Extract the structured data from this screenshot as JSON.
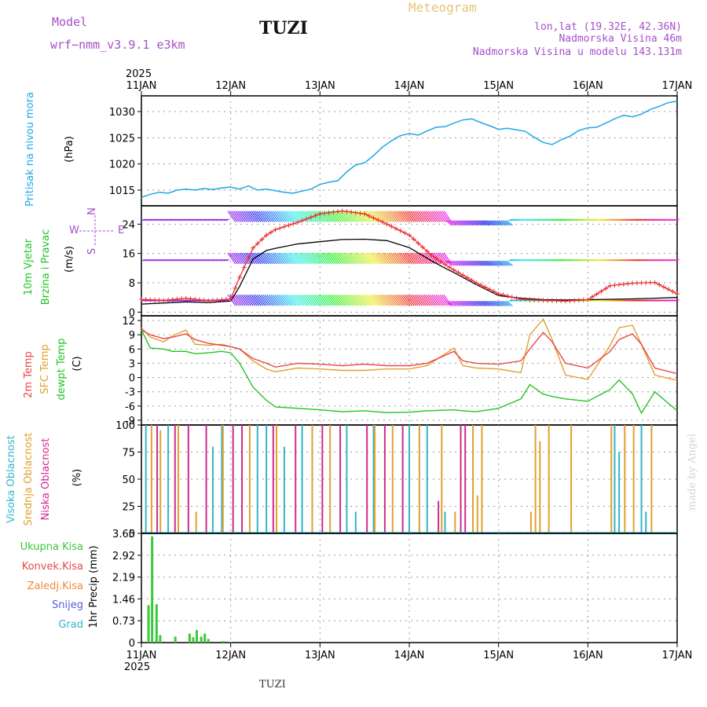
{
  "header": {
    "model_label": "Model",
    "model_name": "wrf−nmm_v3.9.1  e3km",
    "station": "TUZI",
    "product": "Meteogram",
    "coords": "lon,lat (19.32E, 42.36N)",
    "altitude": "Nadmorska Visina 46m",
    "model_altitude": "Nadmorska Visina u modelu 143.131m",
    "year_top": "2025",
    "year_bottom": "2025",
    "footer_station": "TUZI",
    "credit": "made by Angel"
  },
  "colors": {
    "pressure": "#1ea7e6",
    "temp2m": "#e84848",
    "sfc": "#e0a030",
    "dew": "#22c422",
    "gust": "#e83030",
    "speed": "#000000",
    "cloud_high": "#33b5c8",
    "cloud_mid": "#e0a030",
    "cloud_low": "#d02a8e",
    "precip": "#3cc83c",
    "model_text": "#a64fc9",
    "meteogram_text": "#e9c37a"
  },
  "chart_data": [
    {
      "type": "line",
      "panel": "pressure",
      "ylabel_rotated": "Pritisak na nivou mora",
      "unit": "(hPa)",
      "ylim": [
        1012,
        1033
      ],
      "yticks": [
        1015,
        1020,
        1025,
        1030
      ],
      "x_days": [
        0,
        0.1,
        0.2,
        0.3,
        0.4,
        0.5,
        0.6,
        0.7,
        0.8,
        0.9,
        1.0,
        1.1,
        1.2,
        1.3,
        1.4,
        1.5,
        1.6,
        1.7,
        1.8,
        1.9,
        2.0,
        2.1,
        2.2,
        2.3,
        2.4,
        2.5,
        2.6,
        2.7,
        2.8,
        2.9,
        3.0,
        3.1,
        3.2,
        3.3,
        3.4,
        3.5,
        3.6,
        3.7,
        3.8,
        3.9,
        4.0,
        4.1,
        4.2,
        4.3,
        4.4,
        4.5,
        4.6,
        4.7,
        4.8,
        4.9,
        5.0,
        5.1,
        5.2,
        5.3,
        5.4,
        5.5,
        5.6,
        5.7,
        5.8,
        5.9,
        6.0
      ],
      "values": [
        1013.6,
        1014.2,
        1014.6,
        1014.4,
        1015.0,
        1015.2,
        1015.0,
        1015.3,
        1015.1,
        1015.4,
        1015.6,
        1015.2,
        1015.8,
        1015.0,
        1015.2,
        1014.9,
        1014.6,
        1014.4,
        1014.8,
        1015.2,
        1016.1,
        1016.5,
        1016.8,
        1018.5,
        1019.8,
        1020.2,
        1021.6,
        1023.2,
        1024.4,
        1025.4,
        1025.8,
        1025.5,
        1026.3,
        1027.0,
        1027.1,
        1027.8,
        1028.4,
        1028.6,
        1027.9,
        1027.3,
        1026.6,
        1026.8,
        1026.5,
        1026.2,
        1025.1,
        1024.1,
        1023.7,
        1024.6,
        1025.3,
        1026.4,
        1026.9,
        1027.0,
        1027.8,
        1028.6,
        1029.3,
        1029.0,
        1029.5,
        1030.4,
        1031.0,
        1031.7,
        1032.0
      ],
      "series": [
        {
          "name": "Pritisak na nivou mora"
        }
      ]
    },
    {
      "type": "line",
      "panel": "wind",
      "ylabel_rotated_1": "10m Vjetar",
      "ylabel_rotated_2": "Brzina i Pravac",
      "unit": "(m/s)",
      "compass": "N",
      "compass_w": "W",
      "compass_e": "E",
      "compass_s": "S",
      "ylim": [
        -1,
        29
      ],
      "yticks": [
        0,
        8,
        16,
        24
      ],
      "x_days": [
        0,
        0.25,
        0.5,
        0.75,
        1.0,
        1.1,
        1.25,
        1.4,
        1.5,
        1.75,
        2.0,
        2.25,
        2.5,
        2.75,
        3.0,
        3.25,
        3.4,
        3.5,
        3.75,
        4.0,
        4.25,
        4.5,
        4.75,
        5.0,
        5.25,
        5.5,
        5.75,
        6.0
      ],
      "series": [
        {
          "name": "Brzina (mean)",
          "values": [
            2.2,
            2.5,
            2.8,
            2.6,
            3.0,
            7.0,
            14.5,
            16.8,
            17.4,
            18.6,
            19.2,
            19.8,
            19.9,
            19.5,
            17.6,
            14.0,
            12.0,
            10.8,
            7.5,
            4.5,
            3.8,
            3.4,
            3.3,
            3.4,
            3.5,
            3.6,
            3.8,
            4.0
          ]
        },
        {
          "name": "Udar vjetra",
          "values": [
            3.5,
            3.2,
            3.8,
            3.1,
            3.6,
            9.5,
            17.5,
            21.0,
            22.5,
            24.5,
            26.8,
            27.6,
            26.8,
            24.0,
            21.0,
            15.5,
            13.0,
            11.5,
            8.0,
            5.0,
            3.5,
            3.2,
            3.0,
            3.4,
            7.2,
            7.9,
            8.1,
            5.0
          ]
        }
      ],
      "barb_rows": [
        25,
        14,
        3
      ]
    },
    {
      "type": "line",
      "panel": "temperature",
      "ylabel_rotated_1": "2m Temp",
      "ylabel_rotated_2": "SFC Temp",
      "ylabel_rotated_3": "dewpt Temp",
      "unit": "(C)",
      "ylim": [
        -10,
        13
      ],
      "yticks": [
        -9,
        -6,
        -3,
        0,
        3,
        6,
        9,
        12
      ],
      "x_days": [
        0,
        0.1,
        0.25,
        0.35,
        0.5,
        0.6,
        0.75,
        0.9,
        1.0,
        1.1,
        1.25,
        1.4,
        1.5,
        1.75,
        2.0,
        2.25,
        2.5,
        2.75,
        3.0,
        3.2,
        3.5,
        3.6,
        3.75,
        4.0,
        4.25,
        4.35,
        4.5,
        4.6,
        4.75,
        5.0,
        5.25,
        5.35,
        5.5,
        5.6,
        5.75,
        6.0
      ],
      "series": [
        {
          "name": "2m Temp",
          "values": [
            10,
            9,
            8.2,
            8.5,
            9.2,
            8.0,
            7.2,
            6.8,
            6.5,
            6.0,
            4.0,
            3.0,
            2.2,
            3.0,
            2.8,
            2.5,
            2.8,
            2.5,
            2.5,
            3.0,
            5.5,
            3.5,
            3.0,
            2.8,
            3.5,
            6.0,
            9.5,
            7.5,
            3.0,
            2.0,
            5.5,
            8.0,
            9.2,
            7.0,
            2.0,
            0.8
          ]
        },
        {
          "name": "SFC Temp",
          "values": [
            10.5,
            8.5,
            7.5,
            8.8,
            10.0,
            7.0,
            6.8,
            7.0,
            6.5,
            6.0,
            3.5,
            1.8,
            1.2,
            2.0,
            1.8,
            1.5,
            1.5,
            1.8,
            1.8,
            2.5,
            6.2,
            2.5,
            2.0,
            1.8,
            1.0,
            9.0,
            12.3,
            8.0,
            0.5,
            -0.4,
            6.8,
            10.5,
            11.0,
            7.0,
            0.5,
            -0.6
          ]
        },
        {
          "name": "dewpt Temp",
          "values": [
            10,
            6.2,
            6.0,
            5.5,
            5.5,
            5.0,
            5.2,
            5.5,
            5.2,
            3.0,
            -2.0,
            -4.8,
            -6.2,
            -6.5,
            -6.8,
            -7.2,
            -7.0,
            -7.4,
            -7.3,
            -7.0,
            -6.8,
            -7.0,
            -7.2,
            -6.5,
            -4.5,
            -1.5,
            -3.5,
            -4.0,
            -4.5,
            -5.0,
            -2.5,
            -0.5,
            -3.5,
            -7.5,
            -3.0,
            -7.0
          ]
        }
      ]
    },
    {
      "type": "bar",
      "panel": "clouds",
      "ylabel_rotated_1": "Visoka Oblacnost",
      "ylabel_rotated_2": "Srednja Oblacnost",
      "ylabel_rotated_3": "Niska Oblacnost",
      "unit": "(%)",
      "ylim": [
        0,
        100
      ],
      "yticks": [
        0,
        25,
        50,
        75,
        100
      ],
      "series": [
        {
          "name": "Visoka Oblacnost",
          "values": [
            0.05,
            100,
            0.3,
            100,
            0.8,
            80,
            0.9,
            100,
            1.3,
            100,
            1.4,
            100,
            1.6,
            80,
            1.8,
            100,
            2.3,
            100,
            2.4,
            20,
            2.6,
            100,
            3.0,
            100,
            3.2,
            100,
            3.4,
            20,
            5.3,
            100,
            5.35,
            75,
            5.6,
            100,
            5.65,
            20
          ]
        },
        {
          "name": "Srednja Oblacnost",
          "values": [
            0.1,
            100,
            0.2,
            95,
            0.4,
            100,
            0.6,
            20,
            0.9,
            100,
            1.2,
            100,
            1.5,
            100,
            1.9,
            100,
            2.1,
            100,
            2.6,
            100,
            2.8,
            100,
            3.1,
            100,
            3.35,
            100,
            3.5,
            20,
            3.7,
            100,
            3.75,
            35,
            3.8,
            100,
            4.35,
            20,
            4.4,
            100,
            4.45,
            85,
            4.55,
            100,
            4.8,
            100,
            5.25,
            100,
            5.4,
            100,
            5.5,
            100,
            5.7,
            100
          ]
        },
        {
          "name": "Niska Oblacnost",
          "values": [
            0.15,
            100,
            0.35,
            100,
            0.5,
            100,
            0.7,
            100,
            1.0,
            100,
            1.1,
            100,
            1.45,
            100,
            1.7,
            100,
            2.0,
            100,
            2.2,
            100,
            2.5,
            100,
            2.7,
            100,
            2.9,
            100,
            3.3,
            30,
            3.55,
            100,
            3.6,
            100
          ]
        }
      ]
    },
    {
      "type": "bar",
      "panel": "precipitation",
      "ylabel_rotated": "1hr Precip (mm)",
      "legend": [
        "Ukupna Kisa",
        "Konvek.Kisa",
        "Zaledj.Kisa",
        "Snijeg",
        "Grad"
      ],
      "legend_colors": [
        "#3cc83c",
        "#e84848",
        "#f08a3c",
        "#5a5ae0",
        "#33b5c8"
      ],
      "ylim": [
        0,
        3.65
      ],
      "yticks": [
        0,
        0.73,
        1.46,
        2.19,
        2.92,
        3.65
      ],
      "ytick_labels": [
        "0",
        "0.73",
        "1.46",
        "2.19",
        "2.92",
        "3.65"
      ],
      "x_days": [
        0.08,
        0.12,
        0.17,
        0.21,
        0.38,
        0.54,
        0.58,
        0.62,
        0.67,
        0.71,
        0.75,
        0.92,
        1.0
      ],
      "values": [
        1.25,
        3.55,
        1.28,
        0.25,
        0.2,
        0.3,
        0.18,
        0.42,
        0.2,
        0.3,
        0.12,
        0.05,
        0.03
      ],
      "series": [
        {
          "name": "Ukupna Kisa"
        }
      ]
    }
  ],
  "x_axis": {
    "ticks": [
      "11JAN",
      "12JAN",
      "13JAN",
      "14JAN",
      "15JAN",
      "16JAN",
      "17JAN"
    ]
  }
}
